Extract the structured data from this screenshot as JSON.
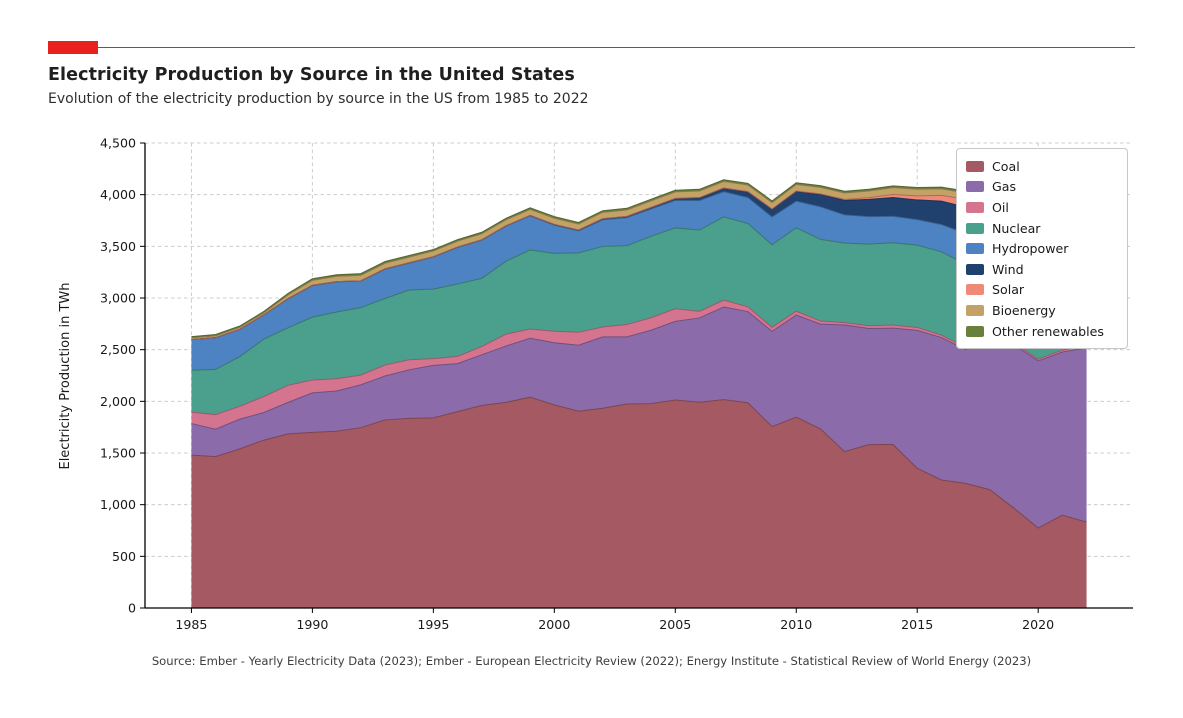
{
  "page": {
    "title": "Electricity Production by Source in the United States",
    "subtitle": "Evolution of the electricity production by source in the US from 1985 to 2022",
    "source": "Source: Ember - Yearly Electricity Data (2023); Ember - European Electricity Review (2022); Energy Institute - Statistical Review of World Energy (2023)",
    "accent_color": "#e8211d"
  },
  "chart_data": {
    "type": "area",
    "stacked": true,
    "title": "Electricity Production by Source in the United States",
    "subtitle": "Evolution of the electricity production by source in the US from 1985 to 2022",
    "xlabel": "",
    "ylabel": "Electricity Production in TWh",
    "ylim": [
      0,
      4500
    ],
    "yticks": [
      0,
      500,
      1000,
      1500,
      2000,
      2500,
      3000,
      3500,
      4000,
      4500
    ],
    "xticks": [
      1985,
      1990,
      1995,
      2000,
      2005,
      2010,
      2015,
      2020
    ],
    "grid": "dashed",
    "legend_position": "upper right",
    "x": [
      1985,
      1986,
      1987,
      1988,
      1989,
      1990,
      1991,
      1992,
      1993,
      1994,
      1995,
      1996,
      1997,
      1998,
      1999,
      2000,
      2001,
      2002,
      2003,
      2004,
      2005,
      2006,
      2007,
      2008,
      2009,
      2010,
      2011,
      2012,
      2013,
      2014,
      2015,
      2016,
      2017,
      2018,
      2019,
      2020,
      2021,
      2022
    ],
    "series": [
      {
        "name": "Coal",
        "color": "#a55a63",
        "values": [
          1480,
          1465,
          1540,
          1625,
          1685,
          1700,
          1710,
          1745,
          1820,
          1835,
          1840,
          1900,
          1960,
          1990,
          2040,
          1966,
          1904,
          1933,
          1974,
          1978,
          2013,
          1991,
          2016,
          1986,
          1756,
          1847,
          1733,
          1514,
          1581,
          1582,
          1352,
          1239,
          1206,
          1146,
          966,
          774,
          898,
          831
        ]
      },
      {
        "name": "Gas",
        "color": "#8c6bab",
        "values": [
          305,
          265,
          288,
          267,
          305,
          382,
          390,
          414,
          425,
          470,
          508,
          465,
          490,
          545,
          570,
          601,
          639,
          691,
          650,
          710,
          761,
          816,
          897,
          883,
          921,
          988,
          1014,
          1225,
          1124,
          1126,
          1335,
          1378,
          1296,
          1468,
          1582,
          1617,
          1579,
          1687
        ]
      },
      {
        "name": "Oil",
        "color": "#d4748f",
        "values": [
          110,
          142,
          124,
          155,
          165,
          125,
          118,
          95,
          106,
          97,
          65,
          70,
          80,
          115,
          90,
          111,
          125,
          95,
          119,
          121,
          122,
          64,
          66,
          46,
          39,
          37,
          30,
          23,
          27,
          30,
          28,
          24,
          21,
          25,
          19,
          17,
          19,
          23
        ]
      },
      {
        "name": "Nuclear",
        "color": "#4aa08d",
        "values": [
          406,
          437,
          481,
          556,
          558,
          608,
          647,
          653,
          644,
          675,
          673,
          700,
          660,
          705,
          765,
          754,
          769,
          780,
          764,
          788,
          782,
          787,
          806,
          806,
          799,
          807,
          790,
          769,
          789,
          797,
          797,
          806,
          805,
          807,
          809,
          790,
          778,
          772
        ]
      },
      {
        "name": "Hydropower",
        "color": "#4d82c3",
        "values": [
          296,
          307,
          264,
          235,
          280,
          305,
          291,
          256,
          284,
          260,
          310,
          355,
          370,
          340,
          330,
          273,
          213,
          258,
          271,
          265,
          267,
          286,
          244,
          252,
          270,
          258,
          316,
          273,
          266,
          256,
          246,
          264,
          297,
          289,
          285,
          285,
          257,
          250
        ]
      },
      {
        "name": "Wind",
        "color": "#20406d",
        "values": [
          0,
          0,
          0,
          0,
          2,
          3,
          3,
          3,
          3,
          4,
          3,
          3,
          3,
          3,
          4,
          6,
          7,
          10,
          11,
          14,
          18,
          27,
          34,
          55,
          74,
          95,
          120,
          141,
          168,
          182,
          191,
          227,
          254,
          273,
          295,
          338,
          378,
          434
        ]
      },
      {
        "name": "Solar",
        "color": "#f08a78",
        "values": [
          0,
          0,
          0,
          0,
          0,
          0,
          0,
          0,
          0,
          0,
          0,
          0,
          0,
          0,
          0,
          1,
          1,
          1,
          1,
          1,
          1,
          1,
          1,
          2,
          2,
          3,
          5,
          9,
          16,
          29,
          39,
          55,
          77,
          93,
          104,
          132,
          164,
          206
        ]
      },
      {
        "name": "Bioenergy",
        "color": "#c3a266",
        "values": [
          17,
          18,
          19,
          20,
          36,
          48,
          50,
          53,
          54,
          55,
          56,
          57,
          58,
          58,
          58,
          60,
          57,
          61,
          62,
          63,
          63,
          64,
          63,
          63,
          62,
          63,
          62,
          62,
          64,
          66,
          64,
          63,
          62,
          61,
          58,
          56,
          55,
          53
        ]
      },
      {
        "name": "Other renewables",
        "color": "#68803b",
        "values": [
          12,
          13,
          13,
          13,
          15,
          16,
          16,
          17,
          17,
          16,
          14,
          15,
          15,
          15,
          16,
          16,
          16,
          16,
          16,
          16,
          16,
          16,
          17,
          17,
          17,
          17,
          17,
          17,
          17,
          17,
          17,
          17,
          17,
          17,
          17,
          17,
          17,
          17
        ]
      }
    ]
  }
}
